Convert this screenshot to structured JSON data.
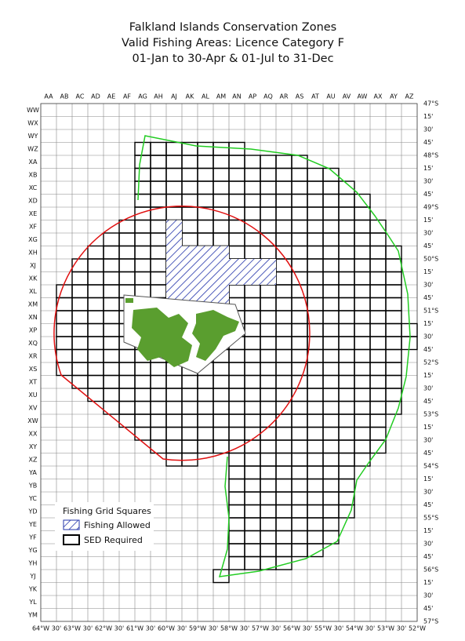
{
  "title": [
    "Falkland Islands Conservation Zones",
    "Valid Fishing Areas: Licence Category F",
    "01-Jan to 30-Apr &  01-Jul to 31-Dec"
  ],
  "columns": [
    "AA",
    "AB",
    "AC",
    "AD",
    "AE",
    "AF",
    "AG",
    "AH",
    "AJ",
    "AK",
    "AL",
    "AM",
    "AN",
    "AP",
    "AQ",
    "AR",
    "AS",
    "AT",
    "AU",
    "AV",
    "AW",
    "AX",
    "AY",
    "AZ"
  ],
  "rows": [
    "WW",
    "WX",
    "WY",
    "WZ",
    "XA",
    "XB",
    "XC",
    "XD",
    "XE",
    "XF",
    "XG",
    "XH",
    "XJ",
    "XK",
    "XL",
    "XM",
    "XN",
    "XP",
    "XQ",
    "XR",
    "XS",
    "XT",
    "XU",
    "XV",
    "XW",
    "XX",
    "XY",
    "XZ",
    "YA",
    "YB",
    "YC",
    "YD",
    "YE",
    "YF",
    "YG",
    "YH",
    "YJ",
    "YK",
    "YL",
    "YM"
  ],
  "latitudes": [
    "47°S",
    "15'",
    "30'",
    "45'",
    "48°S",
    "15'",
    "30'",
    "45'",
    "49°S",
    "15'",
    "30'",
    "45'",
    "50°S",
    "15'",
    "30'",
    "45'",
    "51°S",
    "15'",
    "30'",
    "45'",
    "52°S",
    "15'",
    "30'",
    "45'",
    "53°S",
    "15'",
    "30'",
    "45'",
    "54°S",
    "15'",
    "30'",
    "45'",
    "55°S",
    "15'",
    "30'",
    "45'",
    "56°S",
    "15'",
    "30'",
    "45'",
    "57°S"
  ],
  "longitudes": [
    "64°W",
    "30'",
    "63°W",
    "30'",
    "62°W",
    "30'",
    "61°W",
    "30'",
    "60°W",
    "30'",
    "59°W",
    "30'",
    "58°W",
    "30'",
    "57°W",
    "30'",
    "56°W",
    "30'",
    "55°W",
    "30'",
    "54°W",
    "30'",
    "53°W",
    "30'",
    "52°W"
  ],
  "legend": {
    "title": "Fishing Grid Squares",
    "items": [
      "Fishing Allowed",
      "SED Required"
    ]
  }
}
